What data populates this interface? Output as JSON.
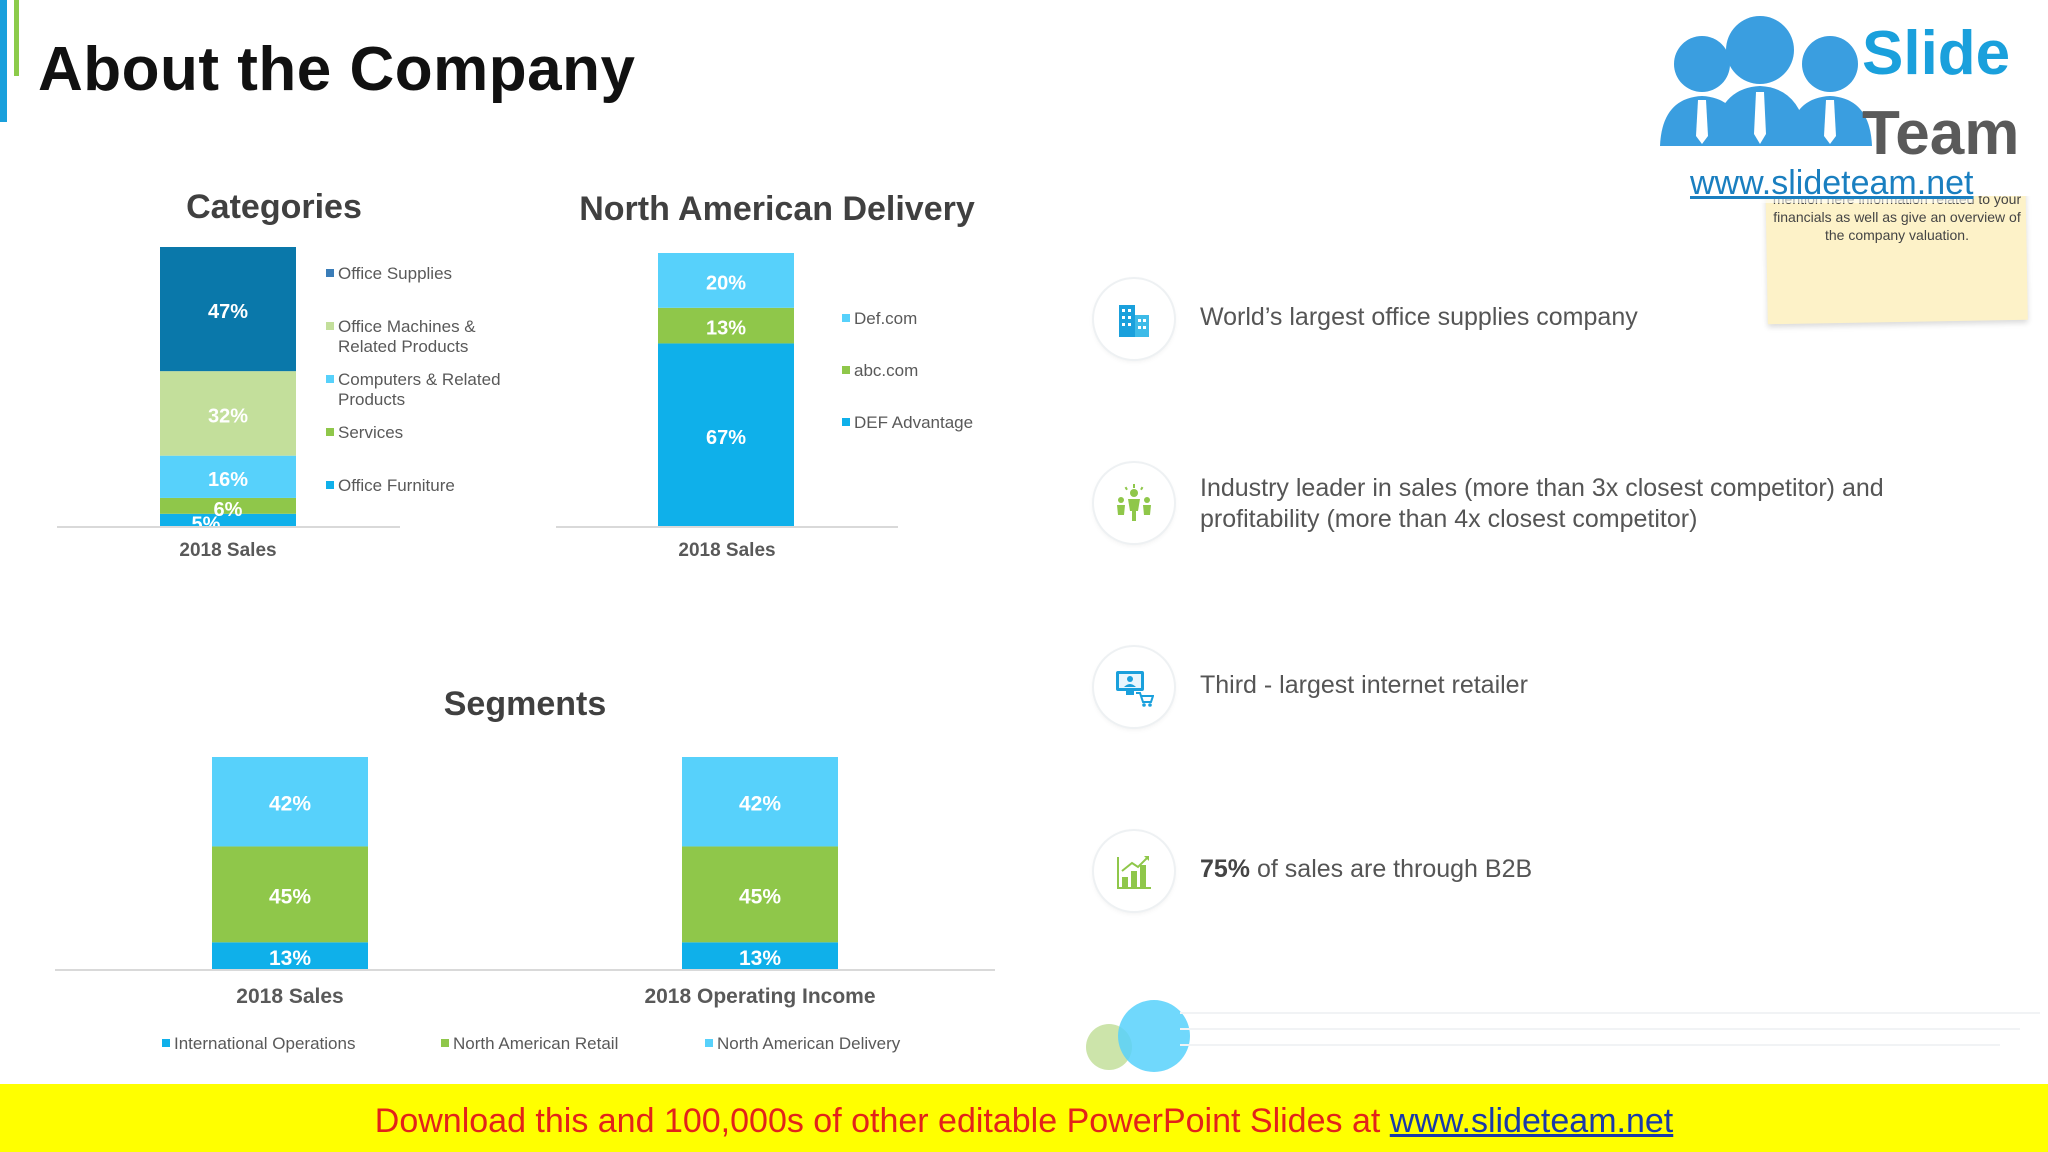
{
  "page": {
    "title": "About the Company"
  },
  "logo": {
    "word1": "Slide",
    "word2": "Team",
    "url": "www.slideteam.net"
  },
  "sticky_note": {
    "text": "mention here information related to your financials as well as give an overview of the company valuation."
  },
  "features": [
    {
      "pre": "",
      "bold": "",
      "text": "World’s largest office supplies company",
      "icon": "building-icon"
    },
    {
      "pre": "",
      "bold": "",
      "text": "Industry leader in sales (more than 3x closest competitor) and profitability (more than 4x closest competitor)",
      "icon": "leader-icon"
    },
    {
      "pre": "",
      "bold": "",
      "text": "Third - largest internet retailer",
      "icon": "online-shop-icon"
    },
    {
      "pre": "",
      "bold": "75%",
      "text": " of sales are through B2B",
      "icon": "growth-chart-icon"
    }
  ],
  "footer": {
    "text": "Download this and 100,000s of other editable PowerPoint Slides at ",
    "link": "www.slideteam.net"
  },
  "colors": {
    "dark_blue": "#0a78aa",
    "light_green": "#c3df9b",
    "sky": "#57d1fb",
    "green": "#8fc74a",
    "blue": "#0fb0ea"
  },
  "chart_data": [
    {
      "type": "bar",
      "stacked": true,
      "title": "Categories",
      "categories": [
        "2018 Sales"
      ],
      "series": [
        {
          "name": "Office Furniture",
          "values": [
            5
          ],
          "label": "5%",
          "color": "#0fb0ea"
        },
        {
          "name": "Services",
          "values": [
            6
          ],
          "label": "6%",
          "color": "#8fc74a"
        },
        {
          "name": "Computers & Related Products",
          "values": [
            16
          ],
          "label": "16%",
          "color": "#57d1fb"
        },
        {
          "name": "Office Machines & Related Products",
          "values": [
            32
          ],
          "label": "32%",
          "color": "#c3df9b"
        },
        {
          "name": "Office Supplies",
          "values": [
            47
          ],
          "label": "47%",
          "color": "#0a78aa"
        }
      ],
      "legend": [
        {
          "name": "Office Supplies",
          "lines": [
            "Office Supplies"
          ],
          "color": "#3a7db8"
        },
        {
          "name": "Office Machines & Related Products",
          "lines": [
            "Office Machines &",
            "Related Products"
          ],
          "color": "#c3df9b"
        },
        {
          "name": "Computers & Related Products",
          "lines": [
            "Computers & Related",
            "Products"
          ],
          "color": "#57d1fb"
        },
        {
          "name": "Services",
          "lines": [
            "Services"
          ],
          "color": "#8fc74a"
        },
        {
          "name": "Office Furniture",
          "lines": [
            "Office Furniture"
          ],
          "color": "#0fb0ea"
        }
      ],
      "legend_position": "right",
      "ylim": [
        0,
        106
      ]
    },
    {
      "type": "bar",
      "stacked": true,
      "title": "North American Delivery",
      "categories": [
        "2018 Sales"
      ],
      "series": [
        {
          "name": "DEF Advantage",
          "values": [
            67
          ],
          "label": "67%",
          "color": "#0fb0ea"
        },
        {
          "name": "abc.com",
          "values": [
            13
          ],
          "label": "13%",
          "color": "#8fc74a"
        },
        {
          "name": "Def.com",
          "values": [
            20
          ],
          "label": "20%",
          "color": "#57d1fb"
        }
      ],
      "legend": [
        {
          "name": "Def.com",
          "lines": [
            "Def.com"
          ],
          "color": "#57d1fb"
        },
        {
          "name": "abc.com",
          "lines": [
            "abc.com"
          ],
          "color": "#8fc74a"
        },
        {
          "name": "DEF Advantage",
          "lines": [
            "DEF Advantage"
          ],
          "color": "#0fb0ea"
        }
      ],
      "legend_position": "right",
      "ylim": [
        0,
        100
      ]
    },
    {
      "type": "bar",
      "stacked": true,
      "title": "Segments",
      "categories": [
        "2018 Sales",
        "2018 Operating Income"
      ],
      "series": [
        {
          "name": "International Operations",
          "values": [
            13,
            13
          ],
          "labels": [
            "13%",
            "13%"
          ],
          "color": "#0fb0ea"
        },
        {
          "name": "North American Retail",
          "values": [
            45,
            45
          ],
          "labels": [
            "45%",
            "45%"
          ],
          "color": "#8fc74a"
        },
        {
          "name": "North American Delivery",
          "values": [
            42,
            42
          ],
          "labels": [
            "42%",
            "42%"
          ],
          "color": "#57d1fb"
        }
      ],
      "legend": [
        {
          "name": "International Operations",
          "lines": [
            "International Operations"
          ],
          "color": "#0fb0ea"
        },
        {
          "name": "North American Retail",
          "lines": [
            "North American Retail"
          ],
          "color": "#8fc74a"
        },
        {
          "name": "North American Delivery",
          "lines": [
            "North American Delivery"
          ],
          "color": "#57d1fb"
        }
      ],
      "legend_position": "bottom",
      "ylim": [
        0,
        100
      ]
    }
  ]
}
